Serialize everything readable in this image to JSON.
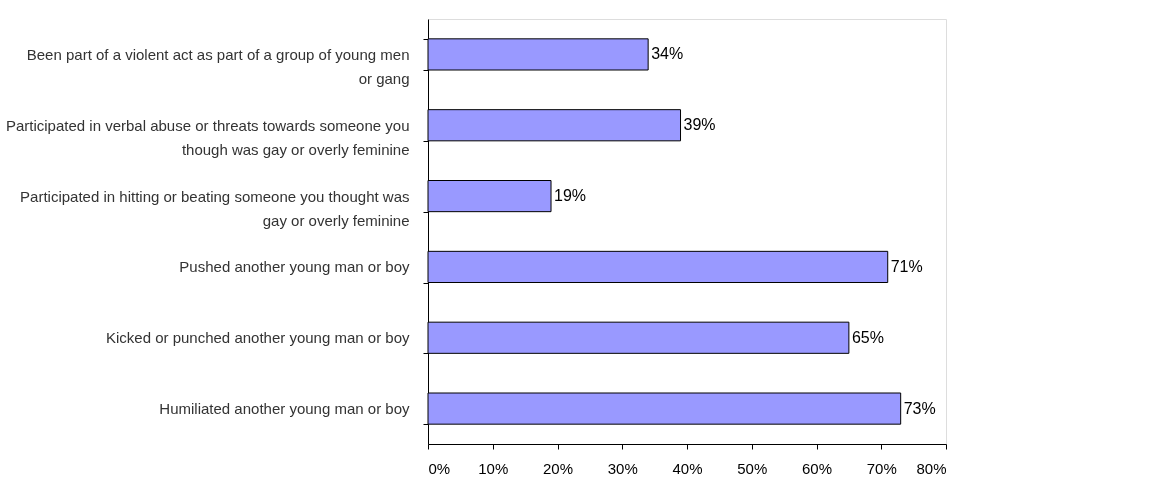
{
  "chart_data": {
    "type": "bar",
    "orientation": "horizontal",
    "categories": [
      "Been part of a violent act as part of a group of young men or gang",
      "Participated in verbal abuse or threats towards someone you though was gay or overly feminine",
      "Participated in hitting or beating someone you thought was gay or overly feminine",
      "Pushed another young man or boy",
      "Kicked or punched another young man or boy",
      "Humiliated another young man or boy"
    ],
    "values": [
      34,
      39,
      19,
      71,
      65,
      73
    ],
    "value_labels": [
      "34%",
      "39%",
      "19%",
      "71%",
      "65%",
      "73%"
    ],
    "color": "#9999ff",
    "xlim": [
      0,
      80
    ],
    "xticks": [
      {
        "value": 0,
        "label": "0%"
      },
      {
        "value": 10,
        "label": "10%"
      },
      {
        "value": 20,
        "label": "20%"
      },
      {
        "value": 30,
        "label": "30%"
      },
      {
        "value": 40,
        "label": "40%"
      },
      {
        "value": 50,
        "label": "50%"
      },
      {
        "value": 60,
        "label": "60%"
      },
      {
        "value": 70,
        "label": "70%"
      },
      {
        "value": 80,
        "label": "80%"
      }
    ],
    "grid": false
  }
}
